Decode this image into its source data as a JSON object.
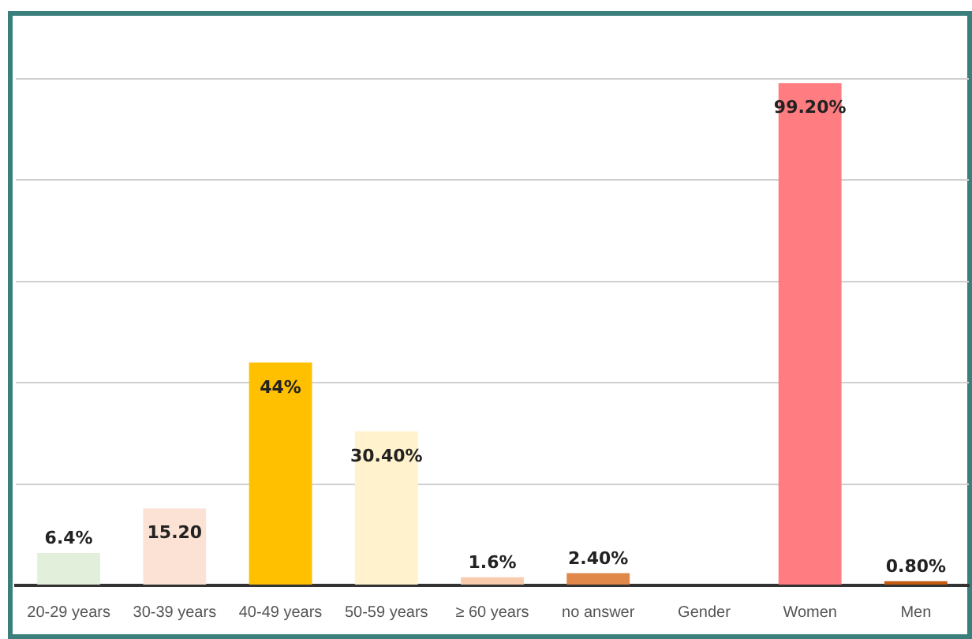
{
  "chart_data": {
    "type": "bar",
    "categories": [
      "20-29 years",
      "30-39 years",
      "40-49 years",
      "50-59 years",
      "≥ 60 years",
      "no answer",
      "Gender",
      "Women",
      "Men"
    ],
    "values": [
      6.4,
      15.2,
      44,
      30.4,
      1.6,
      2.4,
      null,
      99.2,
      0.8
    ],
    "colors": [
      "#e2efda",
      "#fbe2d5",
      "#ffc000",
      "#fff2cc",
      "#f8cbad",
      "#e0884a",
      "#ffffff",
      "#ff7c80",
      "#c55a11"
    ],
    "value_labels": [
      "6.4%",
      "15.20",
      "44%",
      "30.40%",
      "1.6%",
      "2.40%",
      null,
      "99.20%",
      "0.80%"
    ],
    "ylim": [
      0,
      100
    ],
    "yticks": [
      {
        "value": 0,
        "label": null
      },
      {
        "value": 20,
        "label": null
      },
      {
        "value": 40,
        "label": null
      },
      {
        "value": 60,
        "label": null
      },
      {
        "value": 80,
        "label": null
      },
      {
        "value": 100,
        "label": null
      }
    ],
    "grid": "y",
    "tick_labels": "x",
    "legend": false
  }
}
